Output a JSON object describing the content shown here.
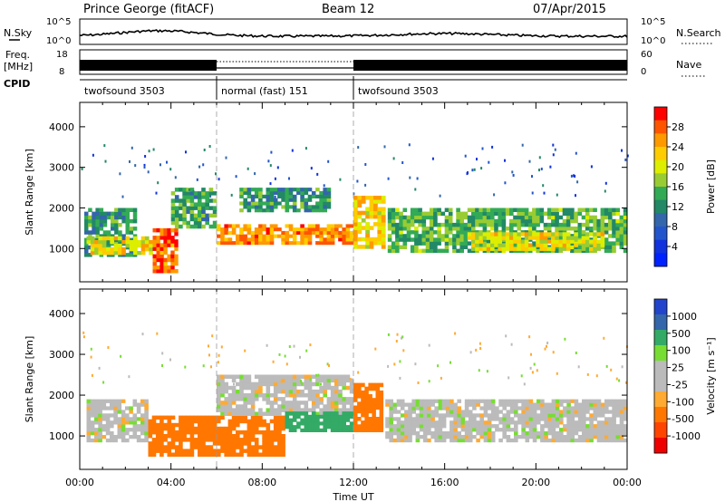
{
  "header": {
    "station": "Prince George (fitACF)",
    "beam": "Beam 12",
    "date": "07/Apr/2015"
  },
  "noise_panel": {
    "left_label": "N.Sky",
    "right_label": "N.Search",
    "ticks_left": [
      "10^5",
      "10^0"
    ],
    "ticks_right": [
      "10^5",
      "10^0"
    ]
  },
  "freq_panel": {
    "left_label_1": "Freq.",
    "left_label_2": "[MHz]",
    "right_label": "Nave",
    "ticks_left": [
      "18",
      "8"
    ],
    "ticks_right": [
      "60",
      "0"
    ]
  },
  "cpid": {
    "label": "CPID",
    "segments": [
      {
        "name": "twofsound 3503",
        "start": 0,
        "end": 6
      },
      {
        "name": "normal (fast) 151",
        "start": 6,
        "end": 12
      },
      {
        "name": "twofsound 3503",
        "start": 12,
        "end": 24
      }
    ]
  },
  "x_axis": {
    "label": "Time UT",
    "ticks": [
      "00:00",
      "04:00",
      "08:00",
      "12:00",
      "16:00",
      "20:00",
      "00:00"
    ]
  },
  "power_colorbar": {
    "label": "Power [dB]",
    "ticks": [
      "28",
      "24",
      "20",
      "16",
      "12",
      "8",
      "4"
    ],
    "colors": [
      "#ff0000",
      "#ff5500",
      "#ff9900",
      "#ffcc00",
      "#ddee00",
      "#99cc33",
      "#33aa55",
      "#228866",
      "#3366aa",
      "#2255cc",
      "#1133dd",
      "#0022ff"
    ]
  },
  "velocity_colorbar": {
    "label": "Velocity",
    "unit": "[m s⁻¹]",
    "ticks": [
      "1000",
      "500",
      "100",
      "25",
      "-25",
      "-100",
      "-500",
      "-1000"
    ],
    "colors": [
      "#2244cc",
      "#3366aa",
      "#33aa66",
      "#77dd33",
      "#bbbbbb",
      "#bbbbbb",
      "#ffaa33",
      "#ff7700",
      "#ff4400",
      "#ee0000"
    ]
  },
  "chart_data": [
    {
      "type": "heatmap",
      "title": "Power",
      "xlabel": "Time UT",
      "ylabel": "Slant Range [km]",
      "xlim": [
        0,
        24
      ],
      "ylim": [
        180,
        4600
      ],
      "yticks": [
        "1000",
        "2000",
        "3000",
        "4000"
      ],
      "colorbar_range": [
        0,
        30
      ],
      "bands": [
        {
          "t0": 0.2,
          "t1": 2.5,
          "r0": 800,
          "r1": 2000,
          "value": 12
        },
        {
          "t0": 0.3,
          "t1": 3.2,
          "r0": 850,
          "r1": 1300,
          "value": 20
        },
        {
          "t0": 3.2,
          "t1": 4.3,
          "r0": 400,
          "r1": 1500,
          "value": 27
        },
        {
          "t0": 4.0,
          "t1": 6.0,
          "r0": 1500,
          "r1": 2500,
          "value": 13
        },
        {
          "t0": 6.0,
          "t1": 12.0,
          "r0": 1100,
          "r1": 1600,
          "value": 25
        },
        {
          "t0": 7.0,
          "t1": 11.0,
          "r0": 1900,
          "r1": 2500,
          "value": 12
        },
        {
          "t0": 12.0,
          "t1": 13.4,
          "r0": 1000,
          "r1": 2300,
          "value": 21
        },
        {
          "t0": 13.5,
          "t1": 24.0,
          "r0": 900,
          "r1": 2000,
          "value": 14
        },
        {
          "t0": 17.0,
          "t1": 23.0,
          "r0": 950,
          "r1": 1400,
          "value": 20
        }
      ]
    },
    {
      "type": "heatmap",
      "title": "Velocity",
      "xlabel": "Time UT",
      "ylabel": "Slant Range [km]",
      "xlim": [
        0,
        24
      ],
      "ylim": [
        180,
        4600
      ],
      "yticks": [
        "1000",
        "2000",
        "3000",
        "4000"
      ],
      "colorbar_range": [
        -1000,
        1000
      ],
      "bands": [
        {
          "t0": 0.3,
          "t1": 3.0,
          "r0": 850,
          "r1": 1900,
          "value": 0
        },
        {
          "t0": 3.0,
          "t1": 9.0,
          "r0": 500,
          "r1": 1500,
          "value": -300
        },
        {
          "t0": 6.0,
          "t1": 12.0,
          "r0": 1500,
          "r1": 2500,
          "value": 0
        },
        {
          "t0": 9.0,
          "t1": 12.0,
          "r0": 1100,
          "r1": 1600,
          "value": 300
        },
        {
          "t0": 12.0,
          "t1": 13.3,
          "r0": 1100,
          "r1": 2300,
          "value": -300
        },
        {
          "t0": 13.4,
          "t1": 24.0,
          "r0": 850,
          "r1": 1900,
          "value": 0
        }
      ]
    }
  ]
}
